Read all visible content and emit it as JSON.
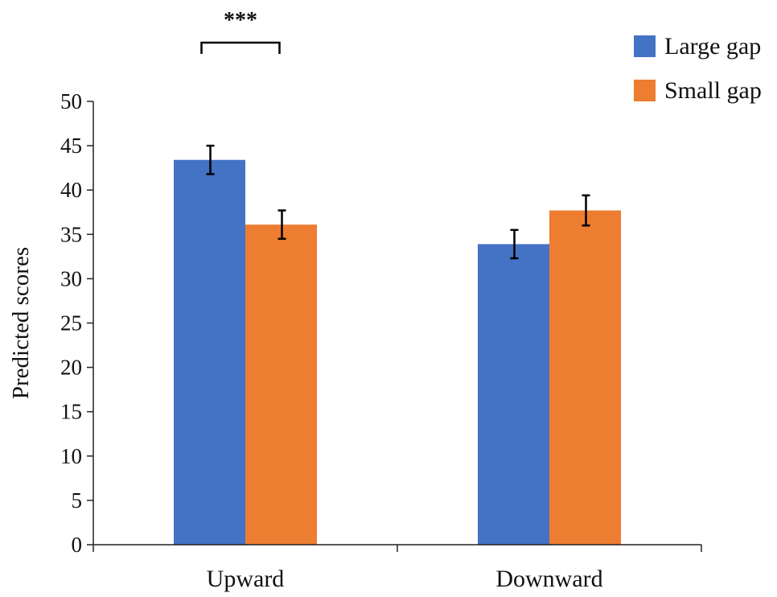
{
  "chart_data": {
    "type": "bar",
    "categories": [
      "Upward",
      "Downward"
    ],
    "series": [
      {
        "name": "Large gap",
        "color": "#4472C4",
        "values": [
          43.4,
          33.9
        ],
        "error": [
          1.6,
          1.6
        ]
      },
      {
        "name": "Small gap",
        "color": "#ED7D31",
        "values": [
          36.1,
          37.7
        ],
        "error": [
          1.6,
          1.7
        ]
      }
    ],
    "ylabel": "Predicted scores",
    "xlabel": "",
    "ylim": [
      0,
      50
    ],
    "yticks": [
      "0",
      "5",
      "10",
      "15",
      "20",
      "25",
      "30",
      "35",
      "40",
      "45",
      "50"
    ],
    "grid": false,
    "legend_position": "top-right",
    "annotations": [
      {
        "label": "***",
        "category": "Upward",
        "between_series": [
          "Large gap",
          "Small gap"
        ]
      }
    ]
  }
}
